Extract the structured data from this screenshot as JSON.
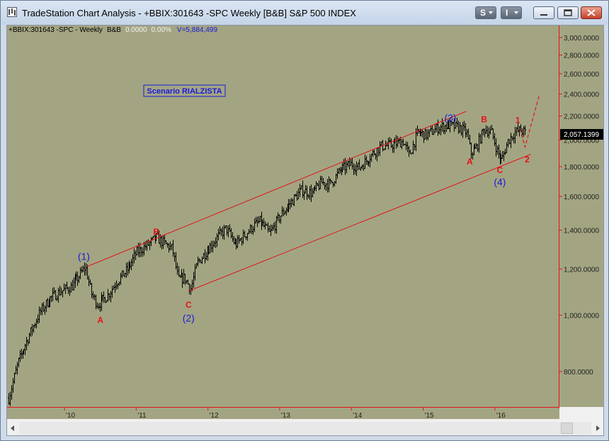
{
  "window": {
    "title": "TradeStation Chart Analysis - +BBIX:301643 -SPC Weekly [B&B] S&P 500 INDEX",
    "buttons": {
      "symbol": "S",
      "indicator": "I"
    }
  },
  "header": {
    "symbol": "+BBIX:301643 -SPC - Weekly",
    "study": "B&B",
    "change": "0.0000",
    "change_pct": "0.00%",
    "volume": "V=5,884,499"
  },
  "scenario_label": "Scenario RIALZISTA",
  "last_price": "2,057.1399",
  "colors": {
    "bg": "#a3a582",
    "candle": "#000000",
    "channel": "#e0141c",
    "wave_red": "#e8101a",
    "wave_blue": "#1a1adc",
    "axis": "#e0141c"
  },
  "wave_labels": [
    {
      "text": "(1)",
      "x": 2010.27,
      "y": 1245,
      "style": "b"
    },
    {
      "text": "A",
      "x": 2010.5,
      "y": 970,
      "style": "r"
    },
    {
      "text": "B",
      "x": 2011.28,
      "y": 1375,
      "style": "r"
    },
    {
      "text": "C",
      "x": 2011.73,
      "y": 1030,
      "style": "r"
    },
    {
      "text": "(2)",
      "x": 2011.73,
      "y": 975,
      "style": "b"
    },
    {
      "text": "(3)",
      "x": 2015.38,
      "y": 2155,
      "style": "b"
    },
    {
      "text": "A",
      "x": 2015.65,
      "y": 1815,
      "style": "r"
    },
    {
      "text": "B",
      "x": 2015.85,
      "y": 2145,
      "style": "r"
    },
    {
      "text": "1",
      "x": 2016.32,
      "y": 2140,
      "style": "r"
    },
    {
      "text": "C",
      "x": 2016.07,
      "y": 1755,
      "style": "r"
    },
    {
      "text": "2",
      "x": 2016.45,
      "y": 1830,
      "style": "r"
    },
    {
      "text": "(4)",
      "x": 2016.07,
      "y": 1670,
      "style": "b"
    }
  ],
  "chart_data": {
    "type": "bar",
    "scale": "log",
    "title": "+BBIX:301643 -SPC - Weekly",
    "x_ticks": [
      "'10",
      "'11",
      "'12",
      "'13",
      "'14",
      "'15",
      "'16"
    ],
    "x_tick_values": [
      2010,
      2011,
      2012,
      2013,
      2014,
      2015,
      2016
    ],
    "y_ticks": [
      "3,000.0000",
      "2,800.0000",
      "2,600.0000",
      "2,400.0000",
      "2,200.0000",
      "2,000.0000",
      "1,800.0000",
      "1,600.0000",
      "1,400.0000",
      "1,200.0000",
      "1,000.0000",
      "800.0000"
    ],
    "y_tick_values": [
      3000,
      2800,
      2600,
      2400,
      2200,
      2000,
      1800,
      1600,
      1400,
      1200,
      1000,
      800
    ],
    "xlim": [
      2009.2,
      2016.9
    ],
    "ylim": [
      700,
      3200
    ],
    "price_path": [
      [
        2009.22,
        720
      ],
      [
        2009.35,
        830
      ],
      [
        2009.5,
        920
      ],
      [
        2009.65,
        1010
      ],
      [
        2009.8,
        1070
      ],
      [
        2009.95,
        1100
      ],
      [
        2010.1,
        1120
      ],
      [
        2010.29,
        1210
      ],
      [
        2010.37,
        1090
      ],
      [
        2010.46,
        1040
      ],
      [
        2010.52,
        1060
      ],
      [
        2010.6,
        1080
      ],
      [
        2010.72,
        1140
      ],
      [
        2010.88,
        1200
      ],
      [
        2011.0,
        1280
      ],
      [
        2011.15,
        1320
      ],
      [
        2011.28,
        1360
      ],
      [
        2011.38,
        1330
      ],
      [
        2011.5,
        1300
      ],
      [
        2011.58,
        1150
      ],
      [
        2011.67,
        1160
      ],
      [
        2011.76,
        1110
      ],
      [
        2011.85,
        1230
      ],
      [
        2012.0,
        1300
      ],
      [
        2012.15,
        1370
      ],
      [
        2012.25,
        1410
      ],
      [
        2012.38,
        1320
      ],
      [
        2012.48,
        1360
      ],
      [
        2012.62,
        1420
      ],
      [
        2012.72,
        1450
      ],
      [
        2012.86,
        1380
      ],
      [
        2013.0,
        1480
      ],
      [
        2013.15,
        1560
      ],
      [
        2013.3,
        1640
      ],
      [
        2013.45,
        1620
      ],
      [
        2013.58,
        1690
      ],
      [
        2013.7,
        1680
      ],
      [
        2013.85,
        1780
      ],
      [
        2014.0,
        1820
      ],
      [
        2014.1,
        1790
      ],
      [
        2014.25,
        1870
      ],
      [
        2014.4,
        1950
      ],
      [
        2014.55,
        1960
      ],
      [
        2014.72,
        1990
      ],
      [
        2014.8,
        1880
      ],
      [
        2014.92,
        2060
      ],
      [
        2015.05,
        2040
      ],
      [
        2015.2,
        2100
      ],
      [
        2015.35,
        2120
      ],
      [
        2015.5,
        2100
      ],
      [
        2015.6,
        2060
      ],
      [
        2015.66,
        1900
      ],
      [
        2015.73,
        1930
      ],
      [
        2015.85,
        2090
      ],
      [
        2015.95,
        2060
      ],
      [
        2016.03,
        1910
      ],
      [
        2016.09,
        1840
      ],
      [
        2016.18,
        1990
      ],
      [
        2016.27,
        2060
      ],
      [
        2016.35,
        2080
      ],
      [
        2016.42,
        2057
      ]
    ],
    "channel_upper": [
      [
        2010.3,
        1210
      ],
      [
        2015.6,
        2240
      ]
    ],
    "channel_lower": [
      [
        2011.73,
        1100
      ],
      [
        2016.5,
        1890
      ]
    ],
    "projection": [
      [
        2016.35,
        2090
      ],
      [
        2016.42,
        1945
      ],
      [
        2016.62,
        2390
      ]
    ]
  }
}
